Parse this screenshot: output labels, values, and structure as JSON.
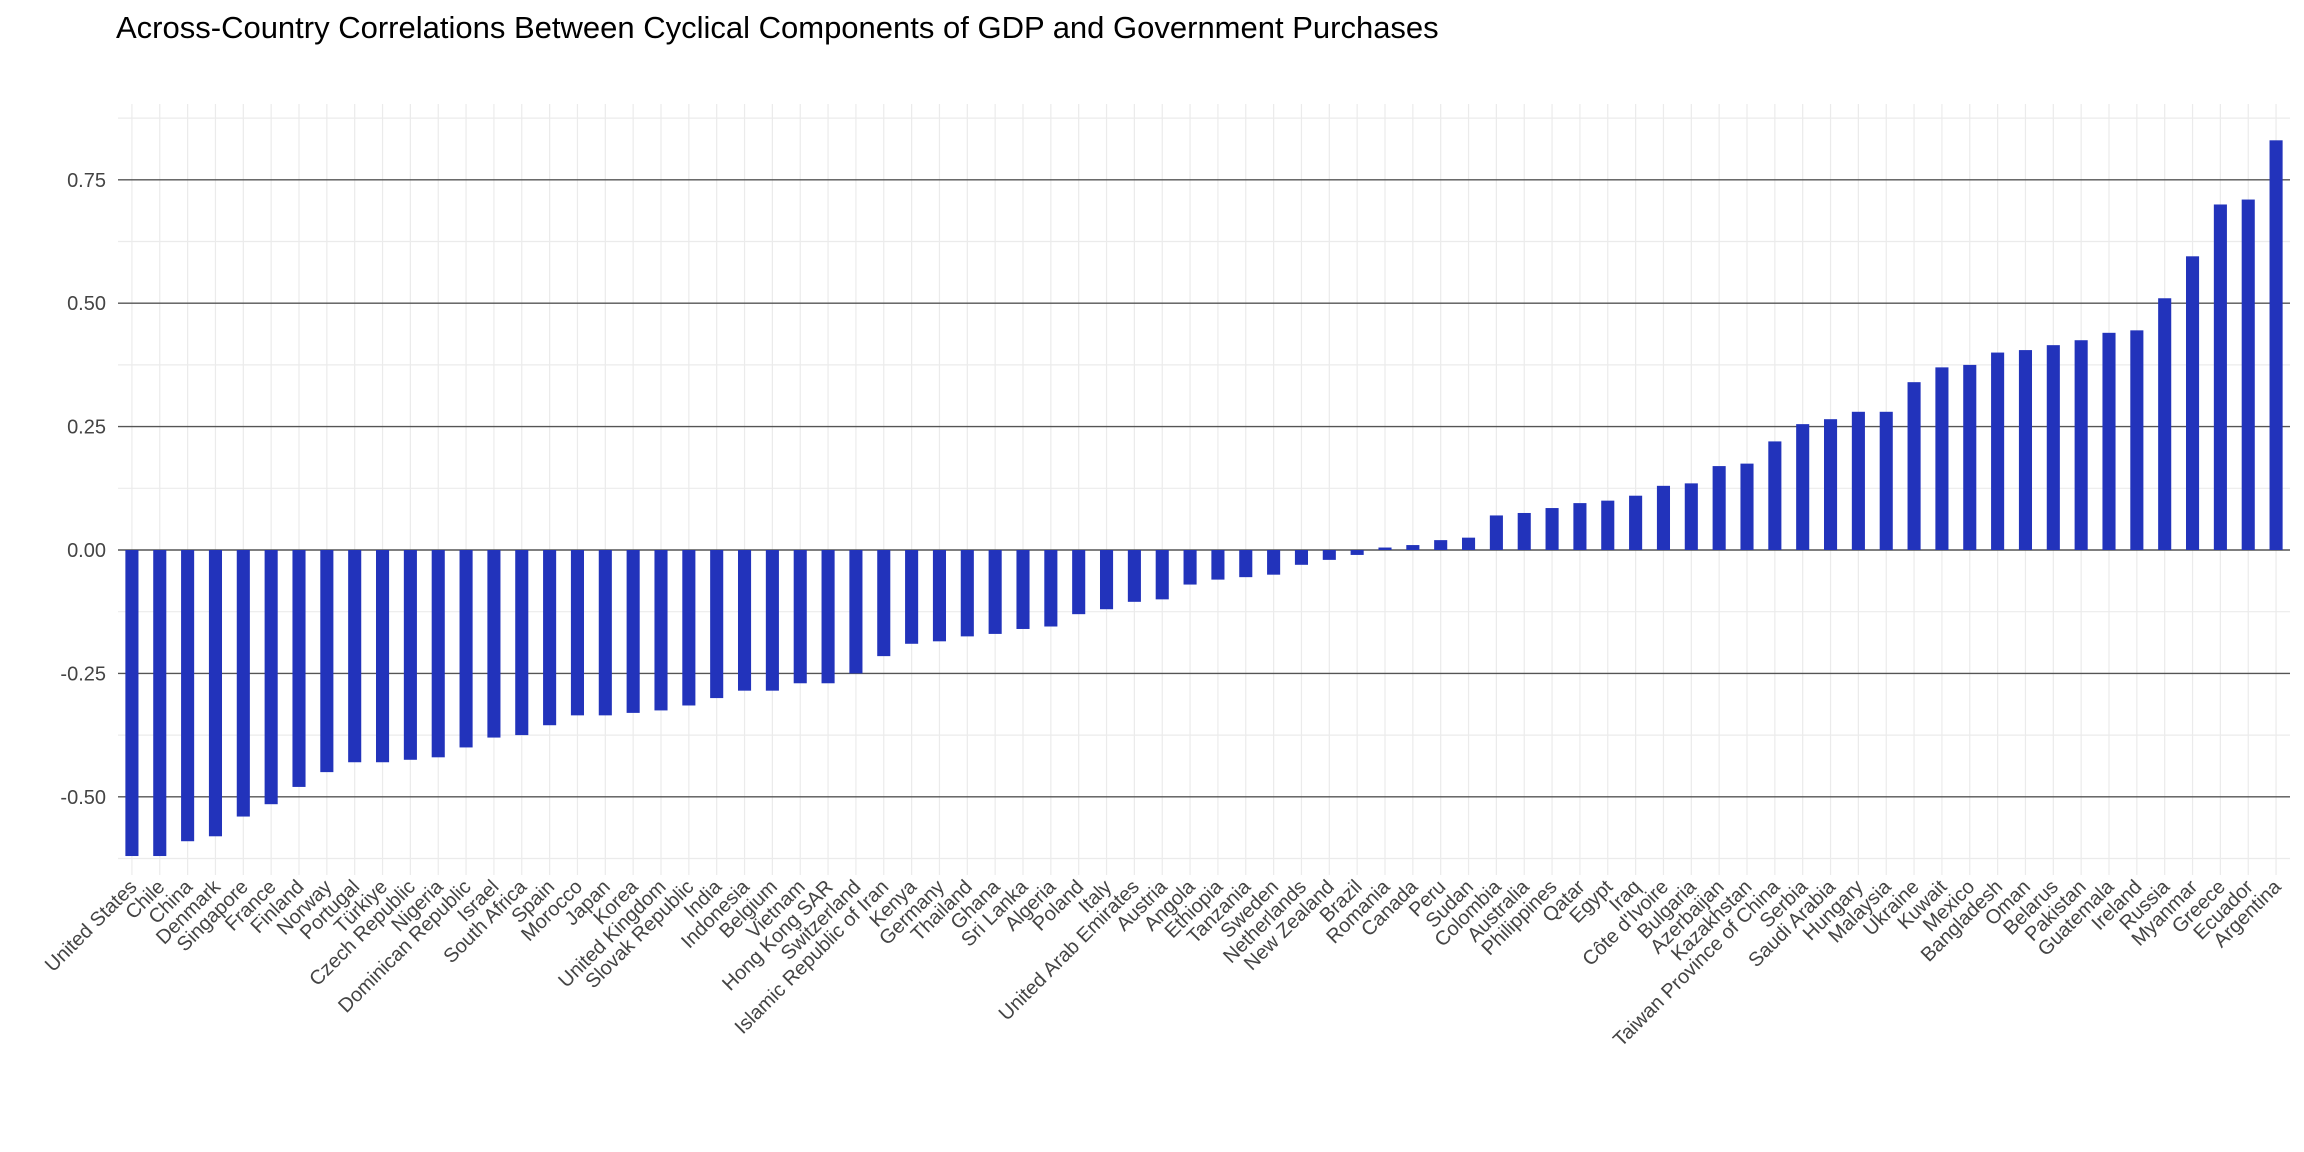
{
  "chart_data": {
    "type": "bar",
    "title": "Across-Country Correlations Between Cyclical Components of GDP and Government Purchases",
    "xlabel": "",
    "ylabel": "",
    "ylim": [
      -0.62,
      0.87
    ],
    "yticks": [
      -0.5,
      -0.25,
      0.0,
      0.25,
      0.5,
      0.75
    ],
    "ytick_labels": [
      "-0.50",
      "-0.25",
      "0.00",
      "0.25",
      "0.50",
      "0.75"
    ],
    "grid": true,
    "bar_color": "#2233bb",
    "categories": [
      "United States",
      "Chile",
      "China",
      "Denmark",
      "Singapore",
      "France",
      "Finland",
      "Norway",
      "Portugal",
      "Türkiye",
      "Czech Republic",
      "Nigeria",
      "Dominican Republic",
      "Israel",
      "South Africa",
      "Spain",
      "Morocco",
      "Japan",
      "Korea",
      "United Kingdom",
      "Slovak Republic",
      "India",
      "Indonesia",
      "Belgium",
      "Vietnam",
      "Hong Kong SAR",
      "Switzerland",
      "Islamic Republic of Iran",
      "Kenya",
      "Germany",
      "Thailand",
      "Ghana",
      "Sri Lanka",
      "Algeria",
      "Poland",
      "Italy",
      "United Arab Emirates",
      "Austria",
      "Angola",
      "Ethiopia",
      "Tanzania",
      "Sweden",
      "Netherlands",
      "New Zealand",
      "Brazil",
      "Romania",
      "Canada",
      "Peru",
      "Sudan",
      "Colombia",
      "Australia",
      "Philippines",
      "Qatar",
      "Egypt",
      "Iraq",
      "Côte d'Ivoire",
      "Bulgaria",
      "Azerbaijan",
      "Kazakhstan",
      "Taiwan Province of China",
      "Serbia",
      "Saudi Arabia",
      "Hungary",
      "Malaysia",
      "Ukraine",
      "Kuwait",
      "Mexico",
      "Bangladesh",
      "Oman",
      "Belarus",
      "Pakistan",
      "Guatemala",
      "Ireland",
      "Russia",
      "Myanmar",
      "Greece",
      "Ecuador",
      "Argentina"
    ],
    "values": [
      -0.62,
      -0.62,
      -0.59,
      -0.58,
      -0.54,
      -0.515,
      -0.48,
      -0.45,
      -0.43,
      -0.43,
      -0.425,
      -0.42,
      -0.4,
      -0.38,
      -0.375,
      -0.355,
      -0.335,
      -0.335,
      -0.33,
      -0.325,
      -0.315,
      -0.3,
      -0.285,
      -0.285,
      -0.27,
      -0.27,
      -0.25,
      -0.215,
      -0.19,
      -0.185,
      -0.175,
      -0.17,
      -0.16,
      -0.155,
      -0.13,
      -0.12,
      -0.105,
      -0.1,
      -0.07,
      -0.06,
      -0.055,
      -0.05,
      -0.03,
      -0.02,
      -0.01,
      0.005,
      0.01,
      0.02,
      0.025,
      0.07,
      0.075,
      0.085,
      0.095,
      0.1,
      0.11,
      0.13,
      0.135,
      0.17,
      0.175,
      0.22,
      0.255,
      0.265,
      0.28,
      0.28,
      0.34,
      0.37,
      0.375,
      0.4,
      0.405,
      0.415,
      0.425,
      0.44,
      0.445,
      0.51,
      0.595,
      0.7,
      0.71,
      0.83
    ]
  }
}
